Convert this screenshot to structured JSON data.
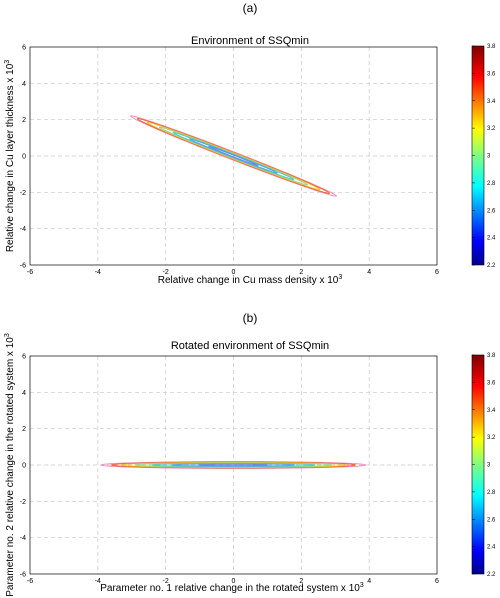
{
  "figure": {
    "panel_a_tag": "(a)",
    "panel_b_tag": "(b)"
  },
  "chart_data": [
    {
      "type": "contour",
      "title": "Environment of SSQmin",
      "xlabel": "Relative change in Cu mass density x 10",
      "xlabel_exp": "3",
      "ylabel": "Relative change in Cu layer thickness x 10",
      "ylabel_exp": "3",
      "xlim": [
        -6,
        6
      ],
      "ylim": [
        -6,
        6
      ],
      "xticks": [
        -6,
        -4,
        -2,
        0,
        2,
        4,
        6
      ],
      "yticks": [
        -6,
        -4,
        -2,
        0,
        2,
        4,
        6
      ],
      "grid": true,
      "colorbar": {
        "range": [
          2.2,
          3.8
        ],
        "ticks": [
          2.2,
          2.4,
          2.6,
          2.8,
          3,
          3.2,
          3.4,
          3.6,
          3.8
        ]
      },
      "contours": {
        "center": [
          0,
          0
        ],
        "angle_deg": -36,
        "semi_major": [
          3.75,
          3.5,
          3.15,
          2.7,
          2.2,
          1.6,
          0.9
        ],
        "semi_minor": [
          0.19,
          0.16,
          0.14,
          0.11,
          0.085,
          0.06,
          0.035
        ],
        "levels": [
          3.4,
          3.1,
          2.95,
          2.8,
          2.65,
          2.55,
          2.45
        ],
        "colors": [
          "#f08ab8",
          "#ec5a28",
          "#e8c020",
          "#8fd890",
          "#48c8c8",
          "#58a0f0",
          "#7088e0"
        ]
      }
    },
    {
      "type": "contour",
      "title": "Rotated environment of SSQmin",
      "xlabel": "Parameter no. 1 relative change in the rotated system x 10",
      "xlabel_exp": "3",
      "ylabel": "Parameter no. 2 relative change in the rotated system x 10",
      "ylabel_exp": "3",
      "xlim": [
        -6,
        6
      ],
      "ylim": [
        -6,
        6
      ],
      "xticks": [
        -6,
        -4,
        -2,
        0,
        2,
        4,
        6
      ],
      "yticks": [
        -6,
        -4,
        -2,
        0,
        2,
        4,
        6
      ],
      "grid": true,
      "colorbar": {
        "range": [
          2.2,
          3.8
        ],
        "ticks": [
          2.2,
          2.4,
          2.6,
          2.8,
          3,
          3.2,
          3.4,
          3.6,
          3.8
        ]
      },
      "contours": {
        "center": [
          0,
          0
        ],
        "angle_deg": 0,
        "semi_major": [
          3.9,
          3.6,
          3.3,
          2.9,
          2.4,
          1.8,
          1.0
        ],
        "semi_minor": [
          0.19,
          0.16,
          0.14,
          0.11,
          0.085,
          0.06,
          0.035
        ],
        "levels": [
          3.4,
          3.1,
          2.95,
          2.8,
          2.65,
          2.55,
          2.45
        ],
        "colors": [
          "#f08ab8",
          "#ec5a28",
          "#e8c020",
          "#8fd890",
          "#48c8c8",
          "#58a0f0",
          "#7088e0"
        ]
      }
    }
  ]
}
